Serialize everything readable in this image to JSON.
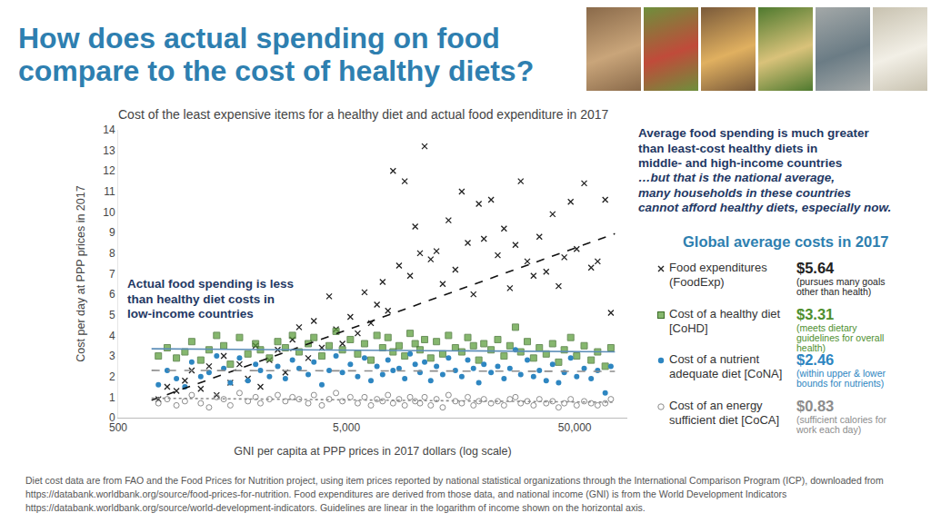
{
  "page_title": [
    "How does actual spending on food",
    "compare to the cost of healthy diets?"
  ],
  "chart_data": {
    "type": "scatter",
    "title": "Cost of the least expensive items for a healthy diet and actual food expenditure in 2017",
    "x_label": "GNI per capita at PPP prices in 2017 dollars (log scale)",
    "y_label": "Cost per day at PPP prices in 2017",
    "log": "x",
    "grid": false,
    "legend": "right",
    "legend_title": "Global average costs in 2017",
    "xlim": [
      500,
      85000
    ],
    "xticks": [
      500,
      {
        "value": 5000,
        "label": "5,000"
      },
      {
        "value": 50000,
        "label": "50,000"
      }
    ],
    "ylim": [
      0,
      14
    ],
    "yticks": [
      0,
      1,
      2,
      3,
      4,
      5,
      6,
      7,
      8,
      9,
      10,
      11,
      12,
      13,
      14
    ],
    "x": [
      750,
      820,
      900,
      980,
      1050,
      1150,
      1250,
      1350,
      1450,
      1550,
      1700,
      1850,
      2000,
      2100,
      2300,
      2500,
      2700,
      2900,
      3100,
      3400,
      3600,
      3900,
      4200,
      4500,
      4800,
      5200,
      5600,
      6000,
      6400,
      6800,
      7200,
      7600,
      8000,
      8500,
      9000,
      9500,
      10000,
      10500,
      11000,
      11700,
      12400,
      13200,
      14000,
      15000,
      16000,
      17000,
      18000,
      19000,
      20000,
      21500,
      23000,
      24500,
      26000,
      27500,
      29000,
      31000,
      33000,
      35000,
      37500,
      40000,
      42500,
      45000,
      48000,
      51000,
      55000,
      59000,
      63000,
      68000,
      72000
    ],
    "series": [
      {
        "name": "Food expenditures (FoodExp)",
        "color": "#222222",
        "marker": "x",
        "global_average": {
          "value": 5.64,
          "label": "$5.64"
        },
        "note": "(pursues many goals other than health)",
        "values": [
          0.9,
          1.5,
          1.3,
          1.8,
          2.3,
          1.4,
          2.5,
          1.1,
          3.0,
          1.7,
          2.6,
          1.9,
          3.5,
          1.5,
          2.8,
          3.3,
          2.2,
          3.8,
          4.4,
          2.9,
          4.7,
          3.4,
          5.9,
          4.3,
          3.6,
          4.9,
          4.1,
          6.1,
          4.6,
          5.5,
          6.6,
          5.2,
          12.0,
          7.4,
          11.5,
          6.9,
          9.3,
          8.0,
          13.2,
          7.7,
          8.1,
          6.5,
          9.6,
          7.2,
          11.0,
          8.5,
          6.0,
          10.4,
          8.7,
          10.6,
          7.9,
          9.2,
          6.3,
          8.4,
          11.5,
          7.6,
          6.9,
          8.8,
          7.1,
          9.9,
          6.4,
          7.8,
          10.5,
          8.2,
          11.4,
          7.3,
          7.6,
          10.6,
          5.1
        ]
      },
      {
        "name": "Cost of a healthy diet [CoHD]",
        "color": "#5e9f3e",
        "marker": "square",
        "global_average": {
          "value": 3.31,
          "label": "$3.31"
        },
        "note": "(meets dietary guidelines for overall health)",
        "values": [
          3.0,
          3.4,
          2.9,
          3.2,
          3.7,
          2.8,
          3.3,
          4.0,
          3.5,
          2.6,
          3.9,
          3.1,
          3.6,
          3.3,
          2.9,
          3.7,
          3.4,
          4.0,
          3.2,
          3.6,
          3.9,
          3.0,
          3.5,
          4.2,
          3.3,
          3.8,
          3.1,
          3.6,
          2.8,
          4.0,
          3.4,
          3.9,
          3.2,
          3.5,
          3.0,
          4.1,
          3.6,
          3.3,
          3.8,
          2.9,
          3.7,
          3.1,
          4.0,
          3.4,
          3.2,
          3.9,
          3.5,
          2.8,
          3.6,
          3.3,
          3.8,
          3.0,
          3.5,
          4.4,
          3.2,
          3.7,
          2.9,
          3.4,
          3.1,
          3.6,
          2.7,
          3.3,
          3.9,
          3.0,
          3.5,
          2.8,
          3.2,
          2.5,
          3.4
        ]
      },
      {
        "name": "Cost of a nutrient adequate diet [CoNA]",
        "color": "#2e86c1",
        "marker": "circle",
        "global_average": {
          "value": 2.46,
          "label": "$2.46"
        },
        "note": "(within upper & lower bounds for nutrients)",
        "values": [
          1.6,
          2.3,
          1.9,
          1.5,
          2.7,
          2.0,
          2.2,
          3.0,
          2.4,
          1.7,
          2.9,
          1.8,
          2.6,
          2.3,
          2.0,
          2.5,
          1.9,
          2.8,
          2.4,
          2.1,
          2.7,
          1.6,
          2.3,
          3.0,
          2.2,
          2.6,
          2.0,
          2.9,
          1.8,
          2.5,
          2.1,
          2.8,
          2.3,
          2.4,
          1.9,
          3.1,
          2.6,
          2.2,
          2.7,
          1.8,
          2.5,
          2.1,
          2.9,
          2.3,
          2.0,
          2.8,
          2.4,
          1.7,
          2.6,
          2.2,
          2.5,
          1.9,
          2.4,
          3.3,
          2.1,
          2.8,
          2.0,
          2.3,
          1.8,
          2.6,
          1.7,
          2.2,
          2.9,
          2.0,
          2.4,
          1.9,
          2.3,
          1.2,
          2.5
        ]
      },
      {
        "name": "Cost of an energy sufficient diet [CoCA]",
        "color": "#8c8c8c",
        "marker": "circle-open",
        "global_average": {
          "value": 0.83,
          "label": "$0.83"
        },
        "note": "(sufficient calories for work each day)",
        "values": [
          0.7,
          0.9,
          0.6,
          0.8,
          1.1,
          0.7,
          0.5,
          1.0,
          0.9,
          0.6,
          1.2,
          0.8,
          1.0,
          0.7,
          0.9,
          1.1,
          0.8,
          1.0,
          0.9,
          0.7,
          1.1,
          0.6,
          0.9,
          1.2,
          0.8,
          1.0,
          0.7,
          1.0,
          0.6,
          0.9,
          0.8,
          1.1,
          0.7,
          0.9,
          0.6,
          1.0,
          0.8,
          0.7,
          1.0,
          0.6,
          0.9,
          0.5,
          1.1,
          0.8,
          0.7,
          1.0,
          0.6,
          0.8,
          0.9,
          0.7,
          0.8,
          0.6,
          0.9,
          1.0,
          0.7,
          0.8,
          0.6,
          0.9,
          0.7,
          0.8,
          0.5,
          0.7,
          0.9,
          0.6,
          0.8,
          0.7,
          0.6,
          0.7,
          0.9
        ]
      }
    ],
    "guidelines": [
      {
        "series": "Food expenditures (FoodExp)",
        "color": "#111111",
        "line_style": "dashed",
        "x": [
          700,
          75000
        ],
        "values": [
          0.85,
          8.95
        ]
      },
      {
        "series": "Cost of a healthy diet [CoHD]",
        "color": "#5b8db8",
        "line_style": "solid",
        "x": [
          700,
          75000
        ],
        "values": [
          3.35,
          3.2
        ]
      },
      {
        "series": "Cost of a nutrient adequate diet [CoNA]",
        "color": "#8c8c8c",
        "line_style": "dashed",
        "x": [
          700,
          75000
        ],
        "values": [
          2.3,
          2.25
        ]
      },
      {
        "series": "Cost of an energy sufficient diet [CoCA]",
        "color": "#8c8c8c",
        "line_style": "dotted",
        "x": [
          700,
          75000
        ],
        "values": [
          0.95,
          0.75
        ]
      }
    ],
    "annotations": [
      {
        "lines": [
          "Actual food spending is less",
          "than healthy diet costs in",
          "low-income countries"
        ]
      },
      {
        "lines": [
          "Average food spending is much greater",
          "than least-cost healthy diets in",
          "middle- and high-income countries"
        ]
      },
      {
        "lines": [
          "…but that is the national average,",
          "many households in these countries",
          "cannot afford healthy diets, especially now."
        ]
      }
    ]
  },
  "footnote": "Diet cost data are from FAO and the Food Prices for Nutrition project, using item prices reported by national statistical organizations through the International Comparison Program (ICP), downloaded from https://databank.worldbank.org/source/food-prices-for-nutrition. Food expenditures are derived from those data, and national income (GNI) is from the World Development Indicators https://databank.worldbank.org/source/world-development-indicators.  Guidelines are linear in the logarithm of income shown on the horizontal axis."
}
